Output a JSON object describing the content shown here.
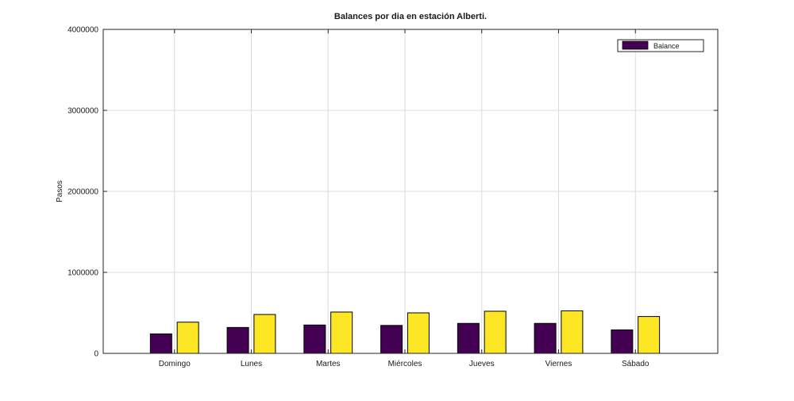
{
  "chart_data": {
    "type": "bar",
    "title": "Balances por dia en estación Alberti.",
    "xlabel": "",
    "ylabel": "Pasos",
    "categories": [
      "Domingo",
      "Lunes",
      "Martes",
      "Miércoles",
      "Jueves",
      "Viernes",
      "Sábado"
    ],
    "series": [
      {
        "name": "Balance",
        "color": "#440154",
        "values": [
          240000,
          320000,
          350000,
          345000,
          370000,
          370000,
          290000
        ]
      },
      {
        "name": "",
        "color": "#fde725",
        "values": [
          385000,
          480000,
          510000,
          500000,
          520000,
          525000,
          455000
        ]
      }
    ],
    "ylim": [
      0,
      4000000
    ],
    "yticks": [
      0,
      1000000,
      2000000,
      3000000,
      4000000
    ],
    "ytick_labels": [
      "0",
      "1000000",
      "2000000",
      "3000000",
      "4000000"
    ],
    "grid": true,
    "legend_position": "top-right"
  }
}
